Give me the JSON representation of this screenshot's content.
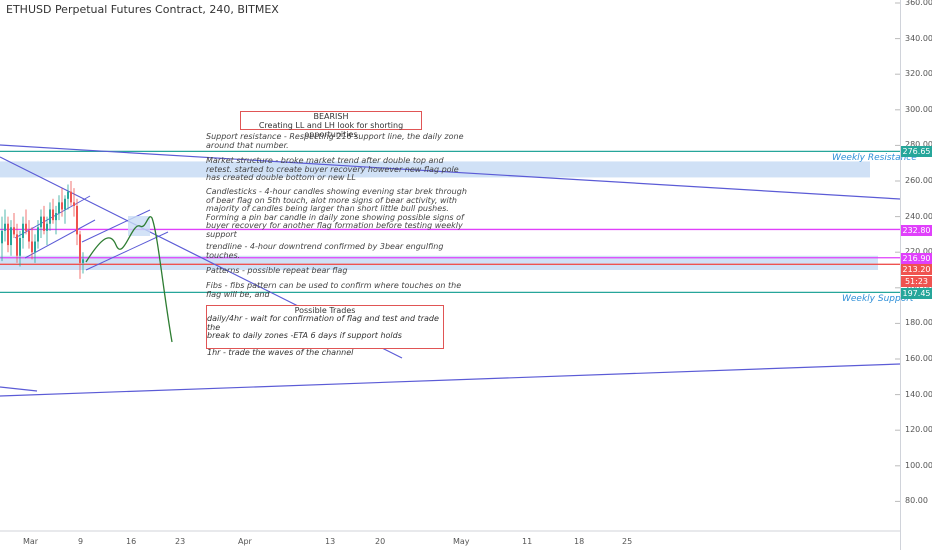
{
  "header": {
    "title": "ETHUSD Perpetual Futures Contract, 240, BITMEX"
  },
  "chart_data": {
    "type": "line",
    "title": "ETHUSD Perpetual Futures Contract, 240, BITMEX",
    "y_ticks": [
      "360.00",
      "340.00",
      "320.00",
      "300.00",
      "280.00",
      "260.00",
      "240.00",
      "220.00",
      "200.00",
      "180.00",
      "160.00",
      "140.00",
      "120.00",
      "100.00",
      "80.00"
    ],
    "x_ticks": [
      "Mar",
      "9",
      "16",
      "23",
      "Apr",
      "13",
      "20",
      "May",
      "11",
      "18",
      "25"
    ],
    "ylim": [
      60,
      370
    ],
    "grid": true,
    "levels": [
      {
        "price": 276.65,
        "label": "276.65",
        "color": "#26a69a",
        "tag": "Weekly Resistance"
      },
      {
        "price": 232.8,
        "label": "232.80",
        "color": "#e040fb",
        "tag": ""
      },
      {
        "price": 216.9,
        "label": "216.90",
        "color": "#e040fb",
        "tag": ""
      },
      {
        "price": 213.2,
        "label": "213.20",
        "color": "#ef5350",
        "tag": ""
      },
      {
        "price": 197.45,
        "label": "197.45",
        "color": "#26a69a",
        "tag": "Weekly Support"
      }
    ],
    "countdown": "51:23",
    "zones": [
      {
        "from": 262,
        "to": 271
      },
      {
        "from": 210,
        "to": 218
      }
    ],
    "annotations": {
      "bearish_box": {
        "title": "BEARISH",
        "text": "Creating LL and LH look for shorting opportunities"
      },
      "notes": [
        "Support resistance - Respecting 216 support line, the daily zone\naround that number.",
        "Market structure - broke market trend after double top and\nretest. started to create buyer recovery however new flag pole\nhas created double bottom or new LL",
        "Candlesticks - 4-hour candles showing evening star brek through\nof bear flag on 5th touch, alot more signs of bear activity, with\nmajority of candles being larger than short little bull pushes.\nForming a pin bar candle in daily zone showing possible signs of\nbuyer recovery for another flag formation before testing weekly\nsupport",
        "trendline - 4-hour downtrend confirmed by 3bear engulfing\ntouches.",
        "Patterns - possible repeat bear flag",
        "Fibs - fibs pattern can be used to confirm where touches on the\nflag will be, and"
      ],
      "trades_box": {
        "title": "Possible Trades",
        "lines": "daily/4hr - wait for confirmation of flag and test and trade the\nbreak to daily zones -ETA 6 days if support holds\n\n1hr - trade the waves of the channel"
      }
    },
    "colors": {
      "trendline": "#5b5bd6",
      "projection": "#2e7d32",
      "zone": "#c8dcf5",
      "up": "#26a69a",
      "down": "#ef5350"
    }
  }
}
